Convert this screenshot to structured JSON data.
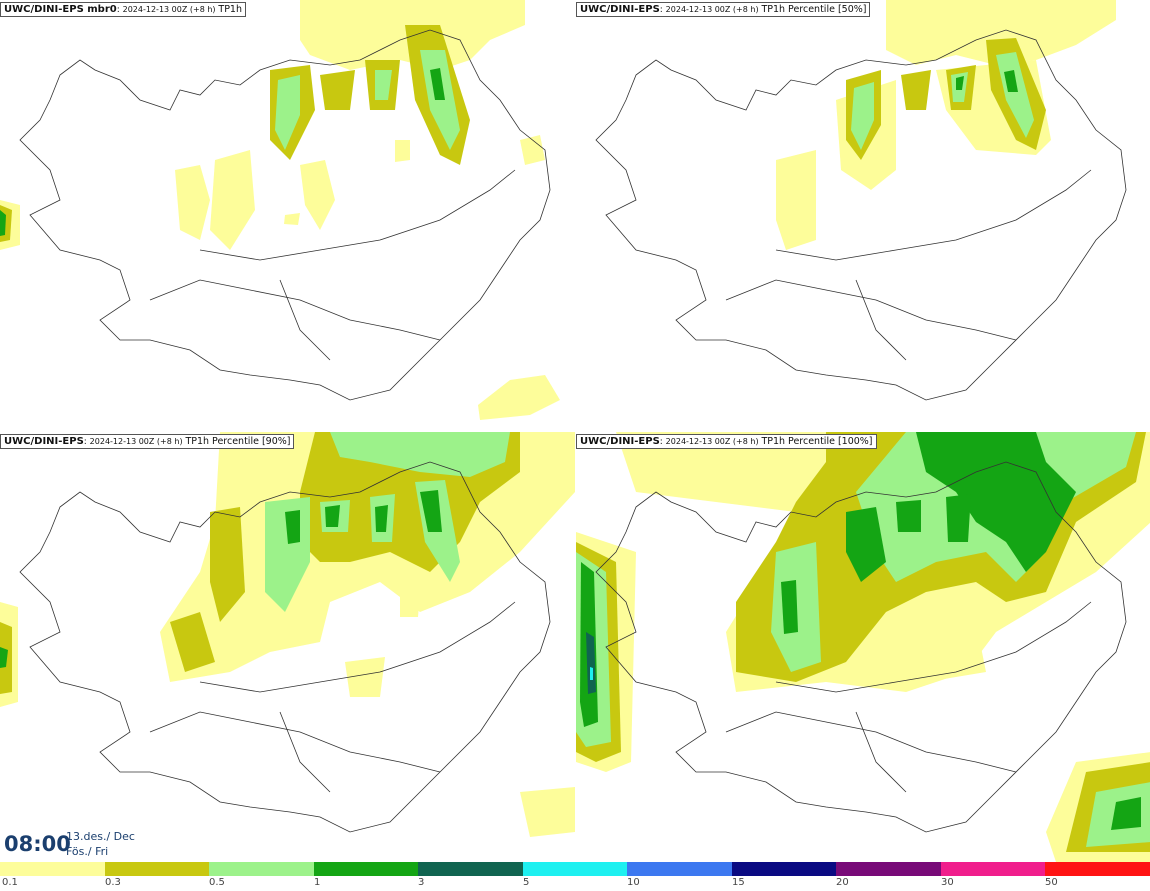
{
  "panels": [
    {
      "model": "UWC/DINI-EPS mbr0",
      "run": "2024-12-13 00Z (+8 h)",
      "field": "TP1h"
    },
    {
      "model": "UWC/DINI-EPS",
      "run": "2024-12-13 00Z (+8 h)",
      "field": "TP1h Percentile [50%]"
    },
    {
      "model": "UWC/DINI-EPS",
      "run": "2024-12-13 00Z (+8 h)",
      "field": "TP1h Percentile [90%]"
    },
    {
      "model": "UWC/DINI-EPS",
      "run": "2024-12-13 00Z (+8 h)",
      "field": "TP1h Percentile [100%]"
    }
  ],
  "time": {
    "clock": "08:00",
    "date_line1": "13.des./ Dec",
    "date_line2": "Fös./ Fri"
  },
  "legend": {
    "labels": [
      "0.1",
      "0.3",
      "0.5",
      "1",
      "3",
      "5",
      "10",
      "15",
      "20",
      "30",
      "50"
    ],
    "colors": [
      "#fdfd9a",
      "#c8c810",
      "#9cf28a",
      "#14a514",
      "#106450",
      "#1ef0f0",
      "#3c78f0",
      "#0a0a82",
      "#780a78",
      "#f01e8c",
      "#ff1414"
    ]
  }
}
